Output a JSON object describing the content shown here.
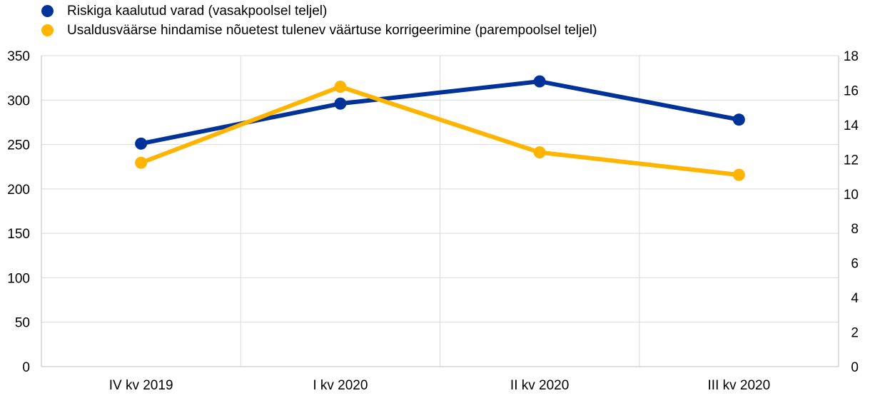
{
  "chart_data": {
    "type": "line",
    "categories": [
      "IV kv 2019",
      "I kv 2020",
      "II kv 2020",
      "III kv 2020"
    ],
    "series": [
      {
        "name": "Riskiga kaalutud varad (vasakpoolsel teljel)",
        "axis": "left",
        "color": "#003299",
        "values": [
          251,
          296,
          321,
          278
        ]
      },
      {
        "name": "Usaldusväärse hindamise nõuetest tulenev väärtuse korrigeerimine (parempoolsel teljel)",
        "axis": "right",
        "color": "#FFB400",
        "values": [
          11.8,
          16.2,
          12.4,
          11.1
        ]
      }
    ],
    "y_left": {
      "ylim": [
        0,
        350
      ],
      "ticks": [
        "0",
        "50",
        "100",
        "150",
        "200",
        "250",
        "300",
        "350"
      ]
    },
    "y_right": {
      "ylim": [
        0,
        18
      ],
      "ticks": [
        "0",
        "2",
        "4",
        "6",
        "8",
        "10",
        "12",
        "14",
        "16",
        "18"
      ]
    },
    "legend_position": "top-left",
    "grid": true,
    "grid_color": "#d9d9d9"
  }
}
